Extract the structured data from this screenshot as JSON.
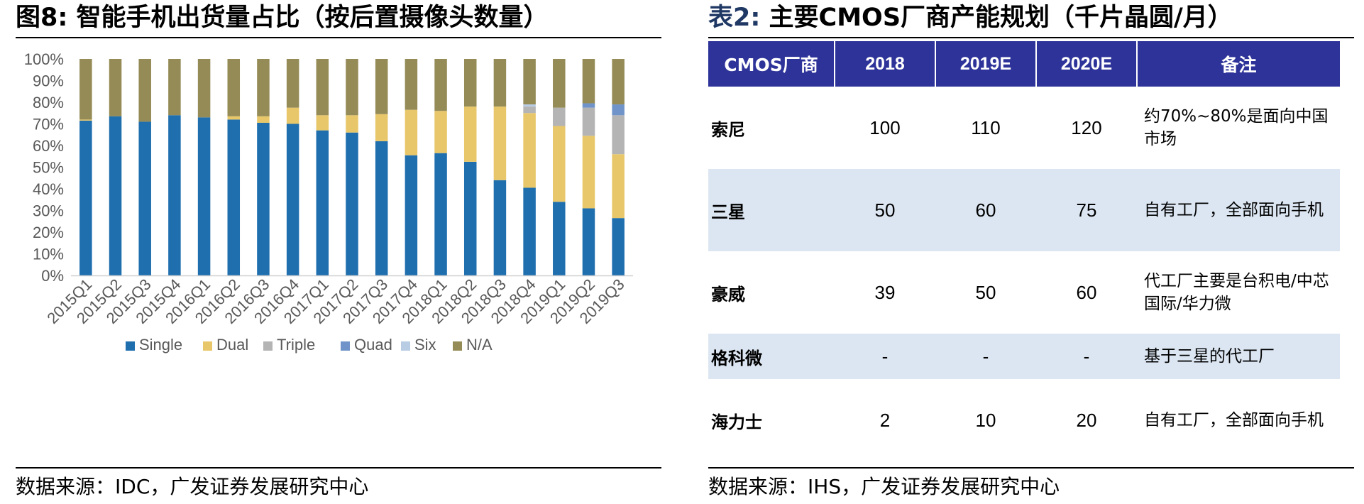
{
  "left": {
    "title_prefix": "图8:",
    "title_text": "智能手机出货量占比（按后置摄像头数量）",
    "source": "数据来源：IDC，广发证券发展研究中心"
  },
  "right": {
    "title_prefix": "表2:",
    "title_text": "主要CMOS厂商产能规划（千片晶圆/月）",
    "source": "数据来源：IHS，广发证券发展研究中心",
    "table": {
      "headers": [
        "CMOS厂商",
        "2018",
        "2019E",
        "2020E",
        "备注"
      ],
      "rows": [
        {
          "name": "索尼",
          "v2018": "100",
          "v2019": "110",
          "v2020": "120",
          "note": "约70%~80%是面向中国市场"
        },
        {
          "name": "三星",
          "v2018": "50",
          "v2019": "60",
          "v2020": "75",
          "note": "自有工厂，全部面向手机"
        },
        {
          "name": "豪威",
          "v2018": "39",
          "v2019": "50",
          "v2020": "60",
          "note": "代工厂主要是台积电/中芯国际/华力微"
        },
        {
          "name": "格科微",
          "v2018": "-",
          "v2019": "-",
          "v2020": "-",
          "note": "基于三星的代工厂"
        },
        {
          "name": "海力士",
          "v2018": "2",
          "v2019": "10",
          "v2020": "20",
          "note": "自有工厂，全部面向手机"
        }
      ]
    }
  },
  "chart_data": {
    "type": "bar",
    "stacked": true,
    "percent": true,
    "title": "",
    "xlabel": "",
    "ylabel": "",
    "ylim": [
      0,
      100
    ],
    "yticks": [
      "0%",
      "10%",
      "20%",
      "30%",
      "40%",
      "50%",
      "60%",
      "70%",
      "80%",
      "90%",
      "100%"
    ],
    "legend_position": "bottom",
    "grid": false,
    "categories": [
      "2015Q1",
      "2015Q2",
      "2015Q3",
      "2015Q4",
      "2016Q1",
      "2016Q2",
      "2016Q3",
      "2016Q4",
      "2017Q1",
      "2017Q2",
      "2017Q3",
      "2017Q4",
      "2018Q1",
      "2018Q2",
      "2018Q3",
      "2018Q4",
      "2019Q1",
      "2019Q2",
      "2019Q3"
    ],
    "series": [
      {
        "name": "Single",
        "color": "#1f6faf",
        "values": [
          71.5,
          73.5,
          71,
          74,
          73,
          72,
          70.5,
          70,
          67,
          66,
          62,
          55.5,
          56.5,
          52.5,
          44,
          40.5,
          34,
          31,
          26.5
        ]
      },
      {
        "name": "Dual",
        "color": "#e8c76a",
        "values": [
          0.5,
          0,
          0,
          0,
          0,
          1.5,
          3,
          7.5,
          7,
          8,
          12.5,
          21,
          19.5,
          25.5,
          34,
          34.5,
          35,
          33.5,
          29.5
        ]
      },
      {
        "name": "Triple",
        "color": "#b4b4b4",
        "values": [
          0,
          0,
          0,
          0,
          0,
          0,
          0,
          0,
          0,
          0,
          0,
          0,
          0,
          0,
          0,
          3,
          8.5,
          13,
          18
        ]
      },
      {
        "name": "Quad",
        "color": "#7094c9",
        "values": [
          0,
          0,
          0,
          0,
          0,
          0,
          0,
          0,
          0,
          0,
          0,
          0,
          0,
          0,
          0,
          0,
          0,
          2,
          5
        ]
      },
      {
        "name": "Six",
        "color": "#b8cce4",
        "values": [
          0,
          0,
          0,
          0,
          0,
          0,
          0,
          0,
          0,
          0,
          0,
          0,
          0,
          0,
          0,
          1,
          0,
          0,
          0
        ]
      },
      {
        "name": "N/A",
        "color": "#958b57",
        "values": [
          28,
          26.5,
          29,
          26,
          27,
          26.5,
          26.5,
          22.5,
          26,
          26,
          25.5,
          23.5,
          24,
          22,
          22,
          21,
          22.5,
          20.5,
          21
        ]
      }
    ]
  }
}
